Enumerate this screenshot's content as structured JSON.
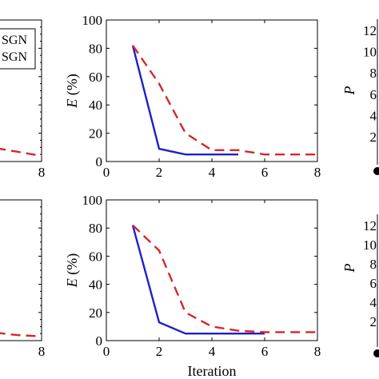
{
  "chart_data": [
    {
      "id": "top-left",
      "type": "line",
      "xlim": [
        0,
        8
      ],
      "ylim": [
        0,
        100
      ],
      "x_ticks": [
        "8"
      ],
      "legend": {
        "placement": "top-left",
        "entries": [
          "SGN",
          "SGN"
        ]
      },
      "series": [
        {
          "color": "#d62728",
          "dash": true,
          "x": [
            5,
            6,
            7,
            8
          ],
          "y": [
            12,
            10,
            7,
            4
          ]
        }
      ]
    },
    {
      "id": "top-middle",
      "type": "line",
      "xlim": [
        0,
        8
      ],
      "ylim": [
        0,
        100
      ],
      "x_ticks": [
        "0",
        "2",
        "4",
        "6",
        "8"
      ],
      "y_ticks": [
        "0",
        "20",
        "40",
        "60",
        "80",
        "100"
      ],
      "ylabel_var": "E",
      "ylabel_unit": "(%)",
      "series": [
        {
          "color": "#1f1fc8",
          "dash": false,
          "x": [
            1,
            2,
            3,
            4,
            5
          ],
          "y": [
            82,
            9,
            5,
            5,
            5
          ]
        },
        {
          "color": "#d62728",
          "dash": true,
          "x": [
            1,
            2,
            3,
            4,
            5,
            6,
            7,
            8
          ],
          "y": [
            82,
            55,
            20,
            8,
            8,
            5,
            5,
            5
          ]
        }
      ]
    },
    {
      "id": "top-right",
      "type": "line",
      "ylabel_var": "P",
      "y_ticks": [
        "12",
        "10",
        "8",
        "6",
        "4",
        "2"
      ]
    },
    {
      "id": "bottom-left",
      "type": "line",
      "xlim": [
        0,
        8
      ],
      "ylim": [
        0,
        100
      ],
      "x_ticks": [
        "8"
      ],
      "series": [
        {
          "color": "#d62728",
          "dash": true,
          "x": [
            5,
            6,
            7,
            8
          ],
          "y": [
            10,
            6,
            4,
            3
          ]
        }
      ]
    },
    {
      "id": "bottom-middle",
      "type": "line",
      "xlim": [
        0,
        8
      ],
      "ylim": [
        0,
        100
      ],
      "x_ticks": [
        "0",
        "2",
        "4",
        "6",
        "8"
      ],
      "y_ticks": [
        "0",
        "20",
        "40",
        "60",
        "80",
        "100"
      ],
      "ylabel_var": "E",
      "ylabel_unit": "(%)",
      "xlabel": "Iteration",
      "series": [
        {
          "color": "#1f1fc8",
          "dash": false,
          "x": [
            1,
            2,
            3,
            4,
            5,
            6
          ],
          "y": [
            82,
            13,
            5,
            5,
            5,
            5
          ]
        },
        {
          "color": "#d62728",
          "dash": true,
          "x": [
            1,
            2,
            3,
            4,
            5,
            6,
            7,
            8
          ],
          "y": [
            82,
            64,
            20,
            10,
            7,
            6,
            6,
            6
          ]
        }
      ]
    },
    {
      "id": "bottom-right",
      "type": "line",
      "ylabel_var": "P",
      "y_ticks": [
        "12",
        "10",
        "8",
        "6",
        "4",
        "2"
      ]
    }
  ]
}
